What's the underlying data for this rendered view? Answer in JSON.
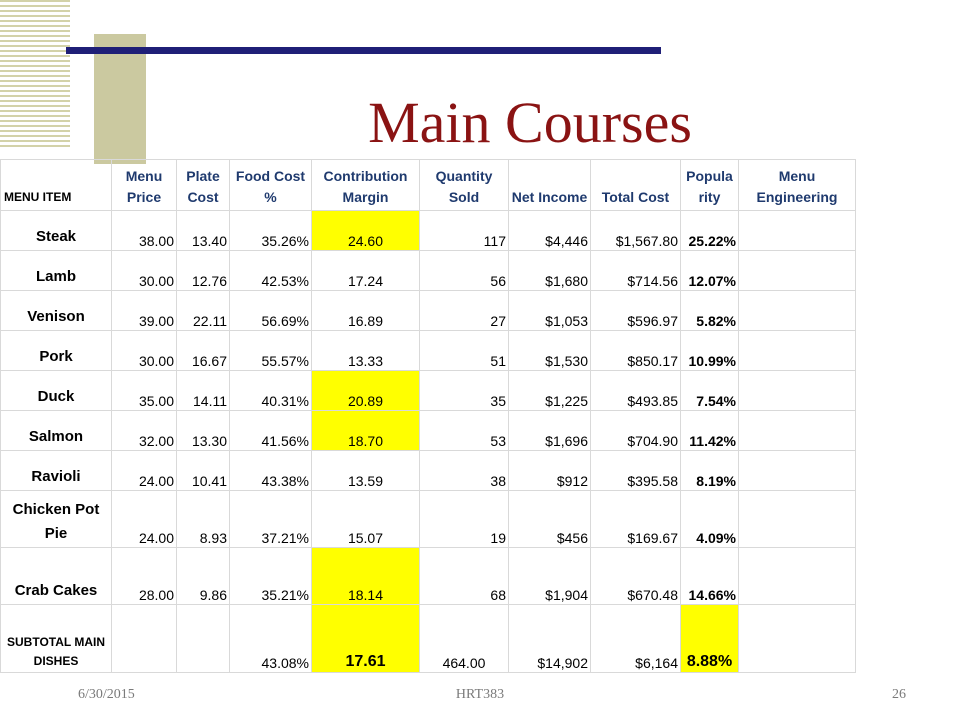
{
  "slide": {
    "title": "Main Courses",
    "footer_date": "6/30/2015",
    "footer_course": "HRT383",
    "footer_page": "26"
  },
  "table": {
    "headers": [
      "MENU ITEM",
      "Menu Price",
      "Plate Cost",
      "Food Cost %",
      "Contribution Margin",
      "Quantity Sold",
      "Net Income",
      "Total Cost",
      "Popula rity",
      "Menu Engineering"
    ],
    "rows": [
      {
        "item": "Steak",
        "price": "38.00",
        "plate": "13.40",
        "fc": "35.26%",
        "cm": "24.60",
        "qty": "117",
        "net": "$4,446",
        "total": "$1,567.80",
        "pop": "25.22%",
        "me": "",
        "hl": true
      },
      {
        "item": "Lamb",
        "price": "30.00",
        "plate": "12.76",
        "fc": "42.53%",
        "cm": "17.24",
        "qty": "56",
        "net": "$1,680",
        "total": "$714.56",
        "pop": "12.07%",
        "me": "",
        "hl": false
      },
      {
        "item": "Venison",
        "price": "39.00",
        "plate": "22.11",
        "fc": "56.69%",
        "cm": "16.89",
        "qty": "27",
        "net": "$1,053",
        "total": "$596.97",
        "pop": "5.82%",
        "me": "",
        "hl": false
      },
      {
        "item": "Pork",
        "price": "30.00",
        "plate": "16.67",
        "fc": "55.57%",
        "cm": "13.33",
        "qty": "51",
        "net": "$1,530",
        "total": "$850.17",
        "pop": "10.99%",
        "me": "",
        "hl": false
      },
      {
        "item": "Duck",
        "price": "35.00",
        "plate": "14.11",
        "fc": "40.31%",
        "cm": "20.89",
        "qty": "35",
        "net": "$1,225",
        "total": "$493.85",
        "pop": "7.54%",
        "me": "",
        "hl": true
      },
      {
        "item": "Salmon",
        "price": "32.00",
        "plate": "13.30",
        "fc": "41.56%",
        "cm": "18.70",
        "qty": "53",
        "net": "$1,696",
        "total": "$704.90",
        "pop": "11.42%",
        "me": "",
        "hl": true
      },
      {
        "item": "Ravioli",
        "price": "24.00",
        "plate": "10.41",
        "fc": "43.38%",
        "cm": "13.59",
        "qty": "38",
        "net": "$912",
        "total": "$395.58",
        "pop": "8.19%",
        "me": "",
        "hl": false
      },
      {
        "item": "Chicken Pot Pie",
        "price": "24.00",
        "plate": "8.93",
        "fc": "37.21%",
        "cm": "15.07",
        "qty": "19",
        "net": "$456",
        "total": "$169.67",
        "pop": "4.09%",
        "me": "",
        "hl": false
      },
      {
        "item": "Crab Cakes",
        "price": "28.00",
        "plate": "9.86",
        "fc": "35.21%",
        "cm": "18.14",
        "qty": "68",
        "net": "$1,904",
        "total": "$670.48",
        "pop": "14.66%",
        "me": "",
        "hl": true
      }
    ],
    "subtotal": {
      "item": "SUBTOTAL MAIN DISHES",
      "price": "",
      "plate": "",
      "fc": "43.08%",
      "cm": "17.61",
      "qty": "464.00",
      "net": "$14,902",
      "total": "$6,164",
      "pop": "8.88%",
      "me": ""
    }
  },
  "colors": {
    "title": "#8a1313",
    "highlight": "#ffff00",
    "header_text": "#1f3a6e"
  }
}
